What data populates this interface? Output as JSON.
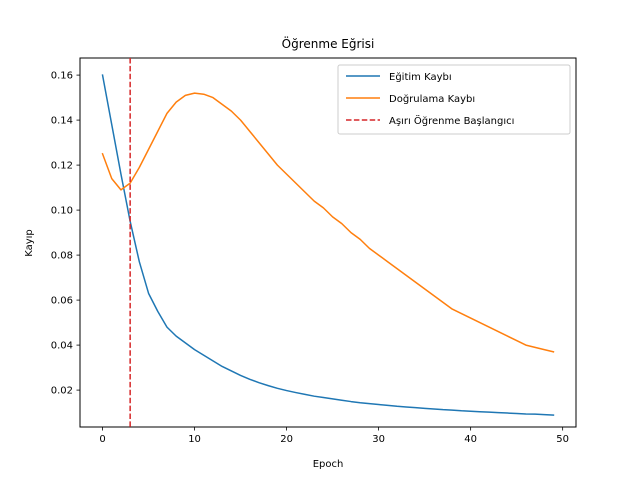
{
  "chart_data": {
    "type": "line",
    "title": "Öğrenme Eğrisi",
    "xlabel": "Epoch",
    "ylabel": "Kayıp",
    "xlim": [
      -2.45,
      51.45
    ],
    "ylim": [
      0.0036,
      0.1676
    ],
    "xticks": [
      0,
      10,
      20,
      30,
      40,
      50
    ],
    "xtick_labels": [
      "0",
      "10",
      "20",
      "30",
      "40",
      "50"
    ],
    "yticks": [
      0.02,
      0.04,
      0.06,
      0.08,
      0.1,
      0.12,
      0.14,
      0.16
    ],
    "ytick_labels": [
      "0.02",
      "0.04",
      "0.06",
      "0.08",
      "0.10",
      "0.12",
      "0.14",
      "0.16"
    ],
    "grid": false,
    "legend": "top-right",
    "x": [
      0,
      1,
      2,
      3,
      4,
      5,
      6,
      7,
      8,
      9,
      10,
      11,
      12,
      13,
      14,
      15,
      16,
      17,
      18,
      19,
      20,
      21,
      22,
      23,
      24,
      25,
      26,
      27,
      28,
      29,
      30,
      31,
      32,
      33,
      34,
      35,
      36,
      37,
      38,
      39,
      40,
      41,
      42,
      43,
      44,
      45,
      46,
      47,
      48,
      49
    ],
    "series": [
      {
        "name": "Eğitim Kaybı",
        "color": "#1f77b4",
        "style": "solid",
        "values": [
          0.16,
          0.138,
          0.116,
          0.095,
          0.077,
          0.063,
          0.055,
          0.048,
          0.044,
          0.041,
          0.038,
          0.0355,
          0.033,
          0.0305,
          0.0285,
          0.0265,
          0.0248,
          0.0233,
          0.022,
          0.0208,
          0.0198,
          0.0189,
          0.0181,
          0.0173,
          0.0167,
          0.0161,
          0.0155,
          0.0149,
          0.0144,
          0.014,
          0.0136,
          0.0132,
          0.0128,
          0.0125,
          0.0122,
          0.0119,
          0.0116,
          0.0113,
          0.0111,
          0.0108,
          0.0106,
          0.0104,
          0.0102,
          0.01,
          0.0098,
          0.0096,
          0.0094,
          0.0093,
          0.0091,
          0.0089
        ]
      },
      {
        "name": "Doğrulama Kaybı",
        "color": "#ff7f0e",
        "style": "solid",
        "values": [
          0.125,
          0.114,
          0.109,
          0.112,
          0.119,
          0.127,
          0.135,
          0.143,
          0.148,
          0.151,
          0.152,
          0.1515,
          0.15,
          0.147,
          0.144,
          0.14,
          0.135,
          0.13,
          0.125,
          0.12,
          0.116,
          0.112,
          0.108,
          0.104,
          0.101,
          0.097,
          0.094,
          0.09,
          0.087,
          0.083,
          0.08,
          0.077,
          0.074,
          0.071,
          0.068,
          0.065,
          0.062,
          0.059,
          0.056,
          0.054,
          0.052,
          0.05,
          0.048,
          0.046,
          0.044,
          0.042,
          0.04,
          0.039,
          0.038,
          0.037
        ]
      }
    ],
    "vline": {
      "name": "Aşırı Öğrenme Başlangıcı",
      "x": 3,
      "color": "#d62728",
      "style": "dashed"
    }
  }
}
